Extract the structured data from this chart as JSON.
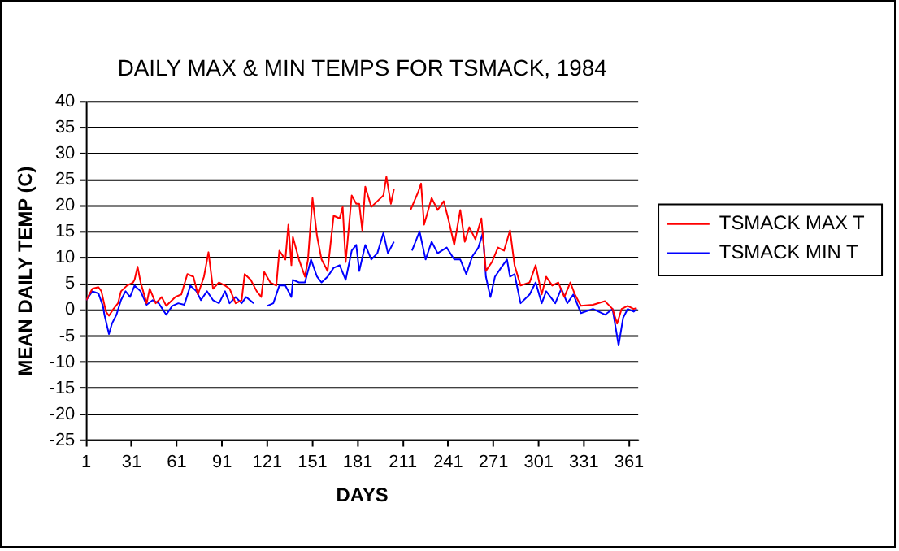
{
  "chart_data": {
    "type": "line",
    "title": "DAILY MAX & MIN TEMPS FOR TSMACK, 1984",
    "xlabel": "DAYS",
    "ylabel": "MEAN DAILY TEMP (C)",
    "xlim": [
      1,
      367
    ],
    "xticks": [
      1,
      31,
      61,
      91,
      121,
      151,
      181,
      211,
      241,
      271,
      301,
      331,
      361
    ],
    "ylim": [
      -25,
      40
    ],
    "yticks": [
      -25,
      -20,
      -15,
      -10,
      -5,
      0,
      5,
      10,
      15,
      20,
      25,
      30,
      35,
      40
    ],
    "grid": "y",
    "legend": "right",
    "marker": "none",
    "line_style": "solid",
    "series": [
      {
        "name": "TSMACK MAX T",
        "color": "#ff0000",
        "x": [
          1,
          5,
          9,
          11,
          14,
          16,
          19,
          22,
          24,
          28,
          32,
          33,
          35,
          37,
          41,
          43,
          47,
          51,
          54,
          60,
          64,
          68,
          72,
          75,
          79,
          82,
          85,
          89,
          93,
          96,
          100,
          104,
          106,
          110,
          114,
          117,
          119,
          123,
          127,
          129,
          133,
          135,
          137,
          138,
          142,
          146,
          148,
          151,
          154,
          157,
          161,
          165,
          169,
          171,
          173,
          177,
          180,
          182,
          184,
          186,
          190,
          194,
          198,
          200,
          203,
          205,
          210,
          216,
          221,
          223,
          225,
          230,
          234,
          238,
          241,
          245,
          249,
          252,
          255,
          259,
          263,
          266,
          270,
          274,
          278,
          282,
          285,
          289,
          295,
          299,
          303,
          306,
          310,
          314,
          318,
          322,
          325,
          329,
          337,
          345,
          350,
          353,
          356,
          360,
          364,
          366
        ],
        "values": [
          1.9,
          4.1,
          4.4,
          3.6,
          -0.3,
          -1.1,
          0.2,
          1.3,
          3.6,
          4.7,
          5.3,
          5.8,
          8.3,
          5.3,
          1.3,
          4.1,
          1.3,
          2.5,
          0.8,
          2.5,
          3.0,
          6.9,
          6.4,
          3.0,
          6.4,
          11.1,
          4.1,
          5.3,
          4.7,
          4.1,
          1.3,
          1.9,
          6.9,
          5.8,
          3.6,
          2.5,
          7.3,
          5.3,
          4.7,
          11.4,
          9.7,
          16.4,
          8.6,
          14.0,
          9.7,
          6.4,
          9.7,
          21.5,
          14.2,
          9.7,
          7.5,
          18.1,
          17.6,
          19.8,
          9.2,
          22.0,
          20.4,
          20.4,
          15.3,
          23.7,
          19.8,
          20.9,
          22.0,
          25.6,
          20.4,
          23.2,
          null,
          19.2,
          22.6,
          24.3,
          16.4,
          21.5,
          19.2,
          20.9,
          17.6,
          12.5,
          19.2,
          13.1,
          15.9,
          13.6,
          17.6,
          7.5,
          9.2,
          12.0,
          11.4,
          15.3,
          8.6,
          4.7,
          5.3,
          8.6,
          3.0,
          6.4,
          4.7,
          5.3,
          2.5,
          5.3,
          3.0,
          0.8,
          1.0,
          1.7,
          0.2,
          -2.6,
          0.2,
          0.8,
          0.2,
          0.4
        ]
      },
      {
        "name": "TSMACK MIN T",
        "color": "#0000ff",
        "x": [
          1,
          5,
          9,
          12,
          13,
          16,
          18,
          21,
          24,
          27,
          30,
          33,
          37,
          41,
          45,
          49,
          54,
          58,
          62,
          66,
          70,
          74,
          77,
          81,
          85,
          89,
          93,
          96,
          100,
          104,
          107,
          112,
          116,
          121,
          125,
          129,
          133,
          137,
          138,
          142,
          146,
          150,
          154,
          157,
          161,
          165,
          169,
          173,
          177,
          180,
          182,
          186,
          190,
          194,
          198,
          201,
          205,
          210,
          217,
          222,
          226,
          230,
          234,
          240,
          245,
          249,
          253,
          257,
          261,
          264,
          266,
          269,
          272,
          276,
          280,
          282,
          285,
          289,
          295,
          299,
          303,
          306,
          312,
          316,
          320,
          324,
          329,
          337,
          345,
          350,
          354,
          357,
          360,
          364,
          366
        ],
        "values": [
          1.9,
          3.6,
          3.2,
          0.8,
          -0.9,
          -4.6,
          -2.6,
          -0.9,
          1.9,
          3.6,
          2.5,
          4.7,
          3.6,
          1.0,
          1.9,
          1.3,
          -0.9,
          0.8,
          1.3,
          1.0,
          4.7,
          3.6,
          1.9,
          3.6,
          1.9,
          1.3,
          3.6,
          1.3,
          2.5,
          1.3,
          2.5,
          1.3,
          null,
          0.8,
          1.3,
          4.7,
          4.7,
          2.5,
          5.8,
          5.3,
          5.3,
          9.7,
          6.4,
          5.3,
          6.4,
          8.1,
          8.6,
          5.8,
          11.4,
          12.5,
          7.5,
          12.5,
          9.7,
          10.9,
          14.8,
          10.9,
          13.1,
          null,
          11.4,
          15.1,
          9.7,
          13.1,
          10.9,
          12.0,
          9.7,
          9.7,
          6.9,
          10.3,
          12.0,
          14.8,
          6.4,
          2.5,
          6.4,
          8.1,
          9.7,
          6.4,
          6.9,
          1.3,
          3.0,
          5.3,
          1.3,
          3.6,
          1.3,
          4.1,
          1.3,
          3.0,
          -0.6,
          0.2,
          -0.9,
          0.2,
          -6.8,
          -1.5,
          0.2,
          -0.3,
          0.2
        ]
      }
    ]
  }
}
